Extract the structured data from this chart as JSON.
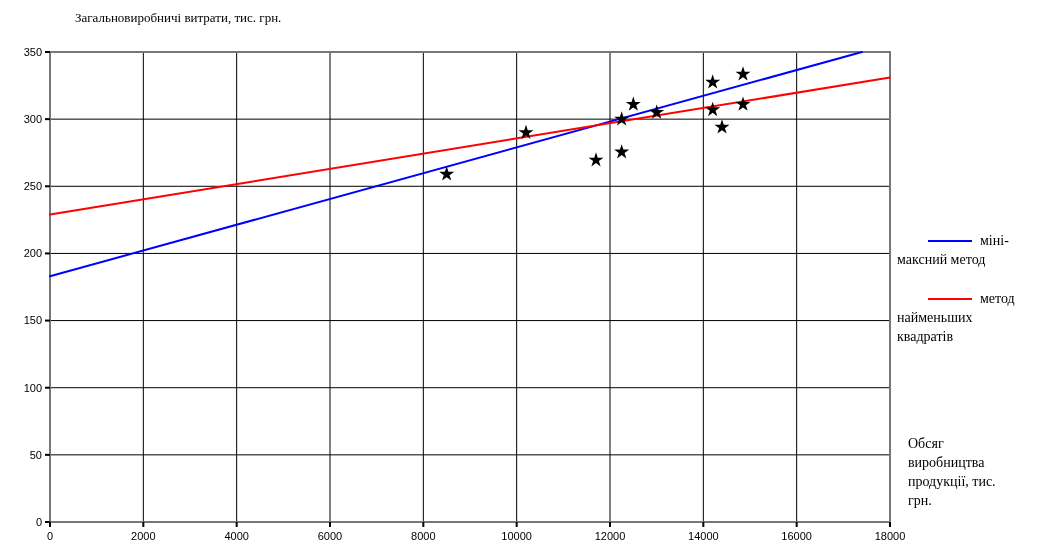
{
  "chart_data": {
    "type": "scatter",
    "xlabel": "Обсяг виробництва продукції, тис. грн.",
    "ylabel": "Загальновиробничі витрати, тис. грн.",
    "xlim": [
      0,
      18000
    ],
    "xticks": [
      0,
      2000,
      4000,
      6000,
      8000,
      10000,
      12000,
      14000,
      16000,
      18000
    ],
    "ylim": [
      0,
      350
    ],
    "yticks": [
      0,
      50,
      100,
      150,
      200,
      250,
      300,
      350
    ],
    "grid": true,
    "legend": "right",
    "series": [
      {
        "type": "line",
        "name": "міні-максний метод",
        "color": "#0000ff",
        "x": [
          0,
          17400
        ],
        "values": [
          183,
          350
        ],
        "marker": "none",
        "line_style": "solid"
      },
      {
        "type": "line",
        "name": "метод найменьших квадратів",
        "color": "#ff0000",
        "x": [
          0,
          18000
        ],
        "values": [
          229,
          331
        ],
        "marker": "none",
        "line_style": "solid"
      },
      {
        "color": "#000000",
        "marker": "star",
        "x": [
          8500,
          10200,
          11700,
          12250,
          12250,
          12500,
          13000,
          14200,
          14200,
          14400,
          14850,
          14850
        ],
        "values": [
          259,
          290,
          269.5,
          275.5,
          300,
          311,
          305,
          327.5,
          307,
          294,
          333.5,
          311
        ]
      }
    ]
  }
}
